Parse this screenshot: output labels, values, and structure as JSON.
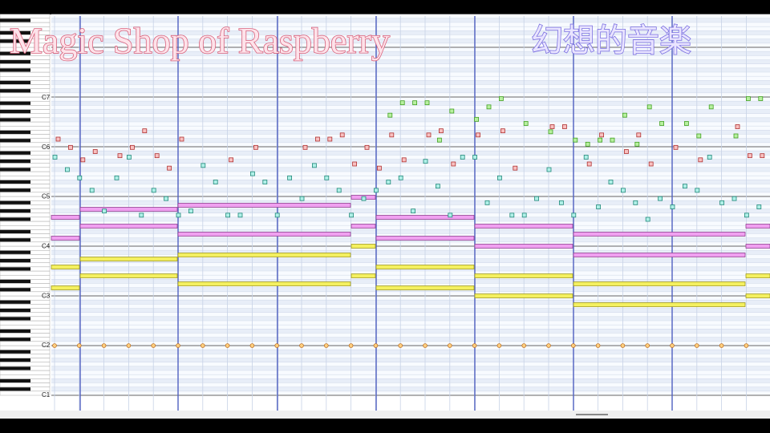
{
  "header": {
    "title": "Magic Shop of Raspberry",
    "subtitle": "幻想的音楽"
  },
  "piano_roll": {
    "octave_labels": [
      "C7",
      "C6",
      "C5",
      "C4",
      "C3",
      "C2",
      "C1"
    ]
  }
}
